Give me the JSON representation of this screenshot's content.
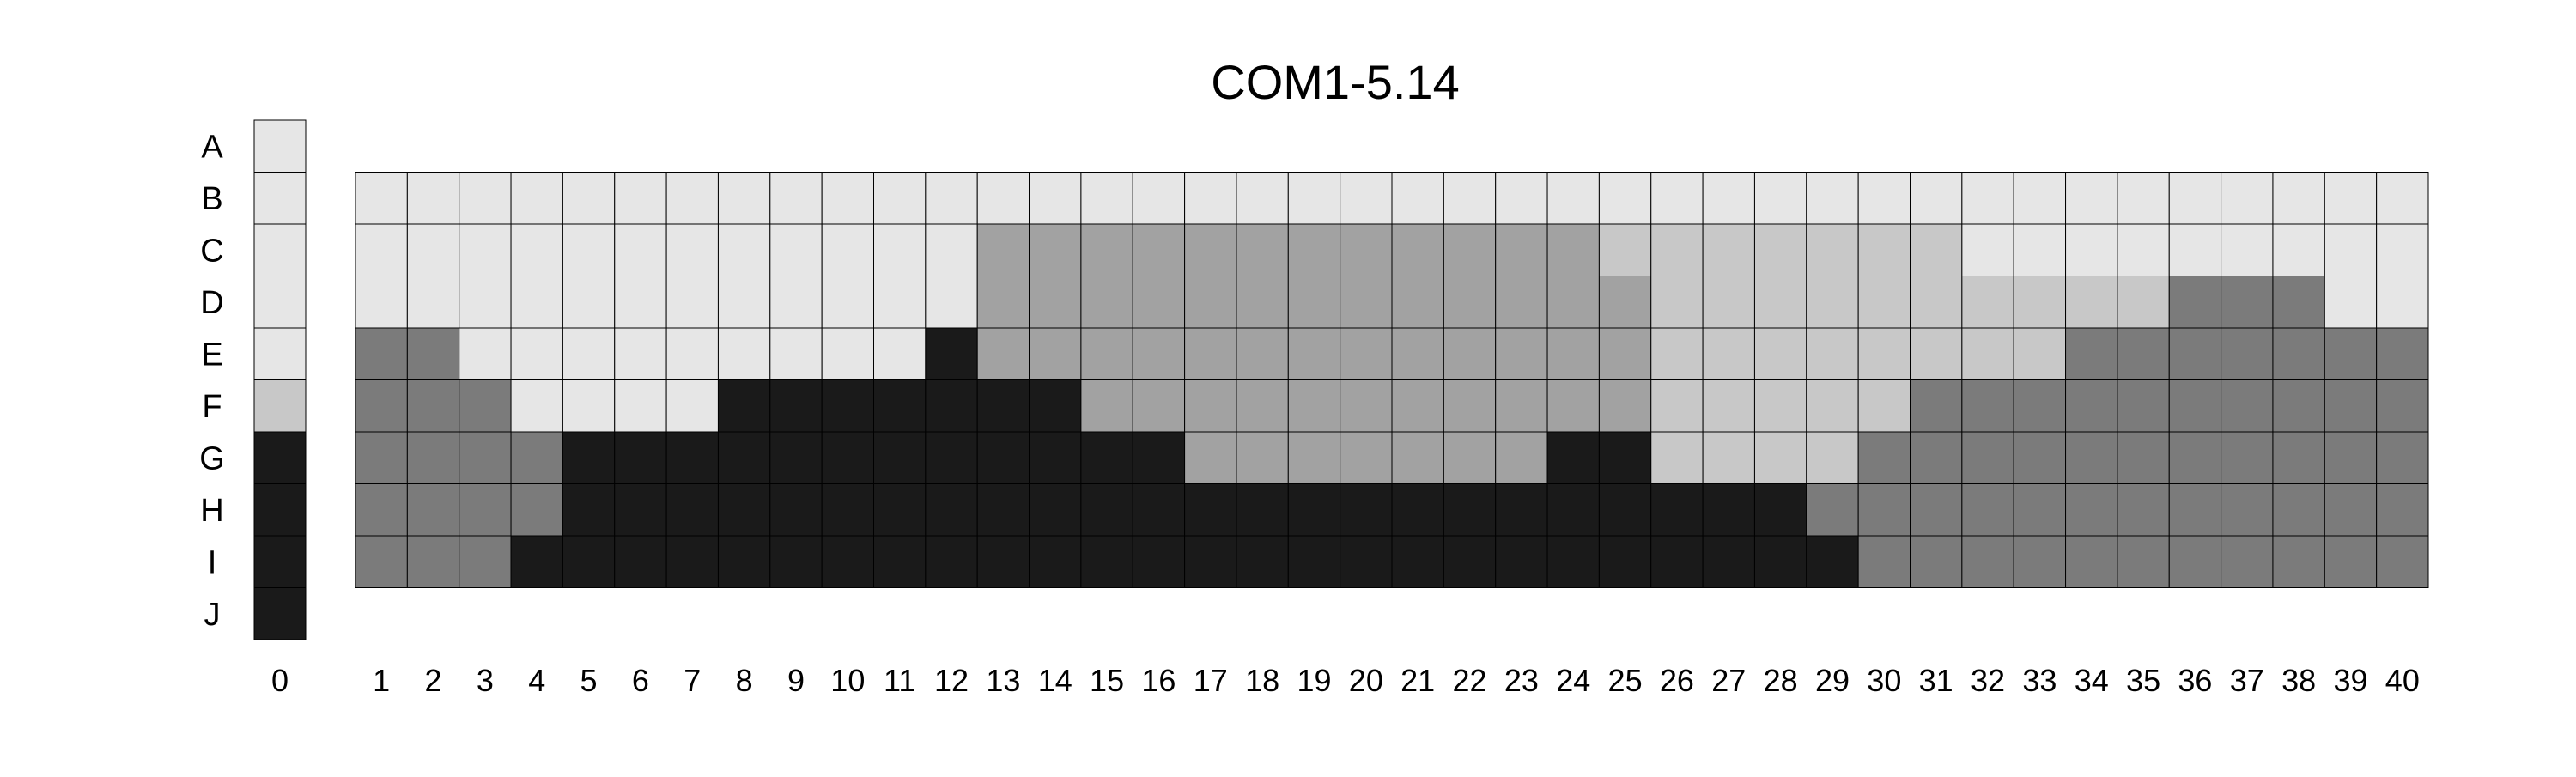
{
  "colors": {
    "0": "#e6e6e6",
    "1": "#c8c8c8",
    "2": "#a2a2a2",
    "3": "#7b7b7b",
    "4": "#1a1a1a",
    "grid": "#000000",
    "background": "#ffffff"
  },
  "chart_data": {
    "type": "heatmap",
    "title": "COM1-5.14",
    "row_labels": [
      "A",
      "B",
      "C",
      "D",
      "E",
      "F",
      "G",
      "H",
      "I",
      "J"
    ],
    "reference": {
      "column_label": "0",
      "levels": [
        0,
        0,
        0,
        0,
        0,
        1,
        4,
        4,
        4,
        4
      ]
    },
    "columns": [
      "1",
      "2",
      "3",
      "4",
      "5",
      "6",
      "7",
      "8",
      "9",
      "10",
      "11",
      "12",
      "13",
      "14",
      "15",
      "16",
      "17",
      "18",
      "19",
      "20",
      "21",
      "22",
      "23",
      "24",
      "25",
      "26",
      "27",
      "28",
      "29",
      "30",
      "31",
      "32",
      "33",
      "34",
      "35",
      "36",
      "37",
      "38",
      "39",
      "40"
    ],
    "grid_rows": [
      "B",
      "C",
      "D",
      "E",
      "F",
      "G",
      "H",
      "I"
    ],
    "grid": [
      [
        0,
        0,
        0,
        0,
        0,
        0,
        0,
        0,
        0,
        0,
        0,
        0,
        0,
        0,
        0,
        0,
        0,
        0,
        0,
        0,
        0,
        0,
        0,
        0,
        0,
        0,
        0,
        0,
        0,
        0,
        0,
        0,
        0,
        0,
        0,
        0,
        0,
        0,
        0,
        0
      ],
      [
        0,
        0,
        0,
        0,
        0,
        0,
        0,
        0,
        0,
        0,
        0,
        0,
        2,
        2,
        2,
        2,
        2,
        2,
        2,
        2,
        2,
        2,
        2,
        2,
        1,
        1,
        1,
        1,
        1,
        1,
        1,
        0,
        0,
        0,
        0,
        0,
        0,
        0,
        0,
        0
      ],
      [
        0,
        0,
        0,
        0,
        0,
        0,
        0,
        0,
        0,
        0,
        0,
        0,
        2,
        2,
        2,
        2,
        2,
        2,
        2,
        2,
        2,
        2,
        2,
        2,
        2,
        1,
        1,
        1,
        1,
        1,
        1,
        1,
        1,
        1,
        1,
        3,
        3,
        3,
        0,
        0
      ],
      [
        3,
        3,
        0,
        0,
        0,
        0,
        0,
        0,
        0,
        0,
        0,
        4,
        2,
        2,
        2,
        2,
        2,
        2,
        2,
        2,
        2,
        2,
        2,
        2,
        2,
        1,
        1,
        1,
        1,
        1,
        1,
        1,
        1,
        3,
        3,
        3,
        3,
        3,
        3,
        3
      ],
      [
        3,
        3,
        3,
        0,
        0,
        0,
        0,
        4,
        4,
        4,
        4,
        4,
        4,
        4,
        2,
        2,
        2,
        2,
        2,
        2,
        2,
        2,
        2,
        2,
        2,
        1,
        1,
        1,
        1,
        1,
        3,
        3,
        3,
        3,
        3,
        3,
        3,
        3,
        3,
        3
      ],
      [
        3,
        3,
        3,
        3,
        4,
        4,
        4,
        4,
        4,
        4,
        4,
        4,
        4,
        4,
        4,
        4,
        2,
        2,
        2,
        2,
        2,
        2,
        2,
        4,
        4,
        1,
        1,
        1,
        1,
        3,
        3,
        3,
        3,
        3,
        3,
        3,
        3,
        3,
        3,
        3
      ],
      [
        3,
        3,
        3,
        3,
        4,
        4,
        4,
        4,
        4,
        4,
        4,
        4,
        4,
        4,
        4,
        4,
        4,
        4,
        4,
        4,
        4,
        4,
        4,
        4,
        4,
        4,
        4,
        4,
        3,
        3,
        3,
        3,
        3,
        3,
        3,
        3,
        3,
        3,
        3,
        3
      ],
      [
        3,
        3,
        3,
        4,
        4,
        4,
        4,
        4,
        4,
        4,
        4,
        4,
        4,
        4,
        4,
        4,
        4,
        4,
        4,
        4,
        4,
        4,
        4,
        4,
        4,
        4,
        4,
        4,
        4,
        3,
        3,
        3,
        3,
        3,
        3,
        3,
        3,
        3,
        3,
        3
      ]
    ],
    "grid_lines": true
  }
}
